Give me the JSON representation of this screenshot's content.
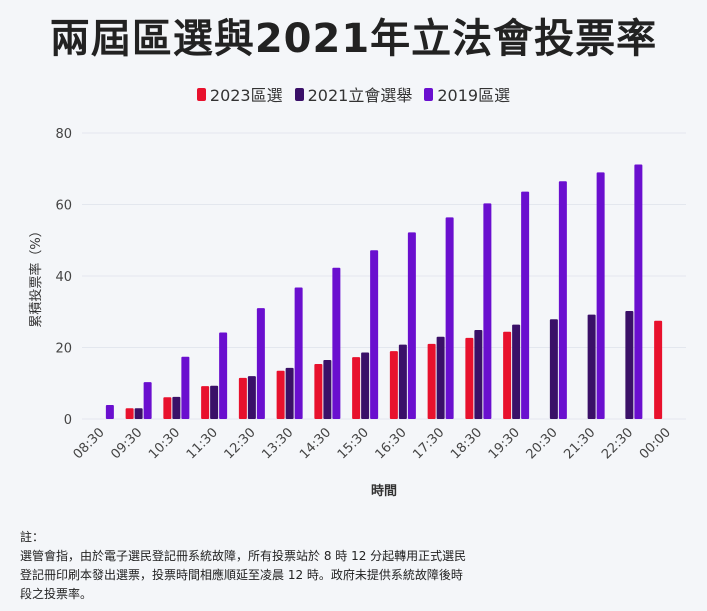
{
  "chart_data": {
    "type": "bar",
    "title": "兩屆區選與2021年立法會投票率",
    "xlabel": "時間",
    "ylabel": "累積投票率（%）",
    "ylim": [
      0,
      80
    ],
    "yticks": [
      0,
      20,
      40,
      60,
      80
    ],
    "categories": [
      "08:30",
      "09:30",
      "10:30",
      "11:30",
      "12:30",
      "13:30",
      "14:30",
      "15:30",
      "16:30",
      "17:30",
      "18:30",
      "19:30",
      "20:30",
      "21:30",
      "22:30",
      "00:00"
    ],
    "series": [
      {
        "name": "2023區選",
        "color": "#e8112d",
        "values": [
          null,
          3.0,
          6.1,
          9.2,
          11.5,
          13.5,
          15.4,
          17.3,
          19.0,
          21.0,
          22.7,
          24.4,
          null,
          null,
          null,
          27.5
        ]
      },
      {
        "name": "2021立會選舉",
        "color": "#3a1068",
        "values": [
          null,
          3.0,
          6.2,
          9.3,
          12.0,
          14.3,
          16.5,
          18.6,
          20.8,
          23.0,
          24.9,
          26.4,
          27.9,
          29.2,
          30.2,
          null
        ]
      },
      {
        "name": "2019區選",
        "color": "#6a0fcf",
        "values": [
          3.9,
          10.3,
          17.4,
          24.2,
          31.0,
          36.8,
          42.3,
          47.2,
          52.2,
          56.4,
          60.3,
          63.6,
          66.5,
          69.0,
          71.2,
          null
        ]
      }
    ]
  },
  "note": {
    "heading": "註：",
    "line1": "選管會指，由於電子選民登記冊系統故障，所有投票站於 8 時 12 分起轉用正式選民",
    "line2": "登記冊印刷本發出選票，投票時間相應順延至凌晨 12 時。政府未提供系統故障後時",
    "line3": "段之投票率。"
  }
}
